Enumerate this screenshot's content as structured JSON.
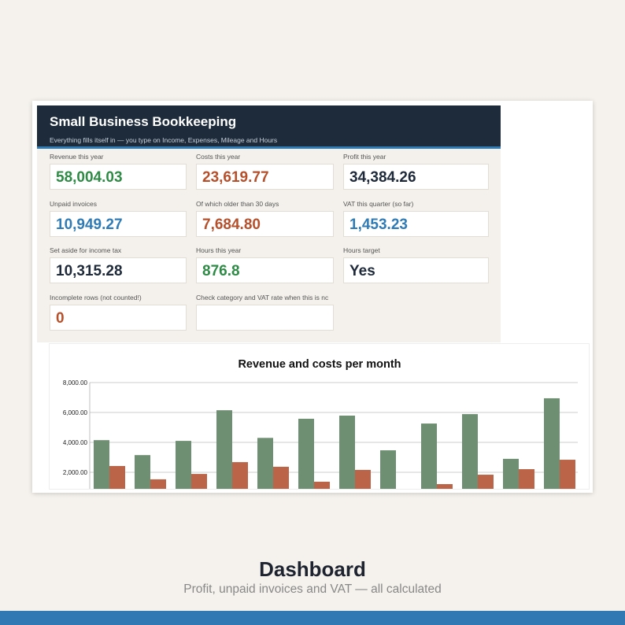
{
  "header": {
    "title": "Small Business Bookkeeping",
    "subtitle": "Everything fills itself in — you type on Income, Expenses, Mileage and Hours"
  },
  "cards": [
    {
      "label": "Revenue this year",
      "value": "58,004.03",
      "color": "#2e8b45"
    },
    {
      "label": "Costs this year",
      "value": "23,619.77",
      "color": "#b5502b"
    },
    {
      "label": "Profit this year",
      "value": "34,384.26",
      "color": "#1e2a3a"
    },
    {
      "label": "Unpaid invoices",
      "value": "10,949.27",
      "color": "#2f7bb5"
    },
    {
      "label": "Of which older than 30 days",
      "value": "7,684.80",
      "color": "#b5502b"
    },
    {
      "label": "VAT this quarter (so far)",
      "value": "1,453.23",
      "color": "#2f7bb5"
    },
    {
      "label": "Set aside for income tax",
      "value": "10,315.28",
      "color": "#1e2a3a"
    },
    {
      "label": "Hours this year",
      "value": "876.8",
      "color": "#2e8b45"
    },
    {
      "label": "Hours target",
      "value": "Yes",
      "color": "#1e2a3a"
    },
    {
      "label": "Incomplete rows (not counted!)",
      "value": "0",
      "color": "#b5502b"
    },
    {
      "label": "Check category and VAT rate when this is nc"
    }
  ],
  "chart_data": {
    "type": "bar",
    "title": "Revenue and costs per month",
    "ylim": [
      0,
      8000
    ],
    "yticks": [
      {
        "value": 2000,
        "label": "2,000.00"
      },
      {
        "value": 4000,
        "label": "4,000.00"
      },
      {
        "value": 6000,
        "label": "6,000.00"
      },
      {
        "value": 8000,
        "label": "8,000.00"
      }
    ],
    "grid": true,
    "series": [
      {
        "color": "#6e8f72",
        "values": [
          4150,
          3150,
          4100,
          6150,
          4300,
          5580,
          5790,
          3470,
          5260,
          5890,
          2900,
          6950
        ]
      },
      {
        "color": "#bb6448",
        "values": [
          2420,
          1530,
          1890,
          2680,
          2370,
          1370,
          2160,
          null,
          1210,
          1840,
          2210,
          2840
        ]
      }
    ]
  },
  "footer": {
    "title": "Dashboard",
    "subtitle": "Profit, unpaid invoices and VAT — all calculated"
  }
}
